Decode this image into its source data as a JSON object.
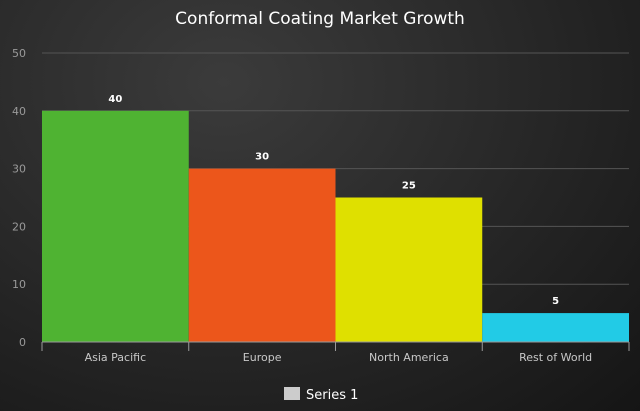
{
  "chart_data": {
    "type": "bar",
    "title": "Conformal Coating Market Growth",
    "categories": [
      "Asia Pacific",
      "Europe",
      "North America",
      "Rest of World"
    ],
    "series": [
      {
        "name": "Series 1",
        "values": [
          40,
          30,
          25,
          5
        ]
      }
    ],
    "bar_colors": [
      "#4fb332",
      "#ec561b",
      "#dfe000",
      "#22cbe6"
    ],
    "ylim": [
      0,
      50
    ],
    "yticks": [
      0,
      10,
      20,
      30,
      40,
      50
    ],
    "grid": true,
    "legend_position": "bottom",
    "legend_swatch_color": "#cccccc"
  }
}
